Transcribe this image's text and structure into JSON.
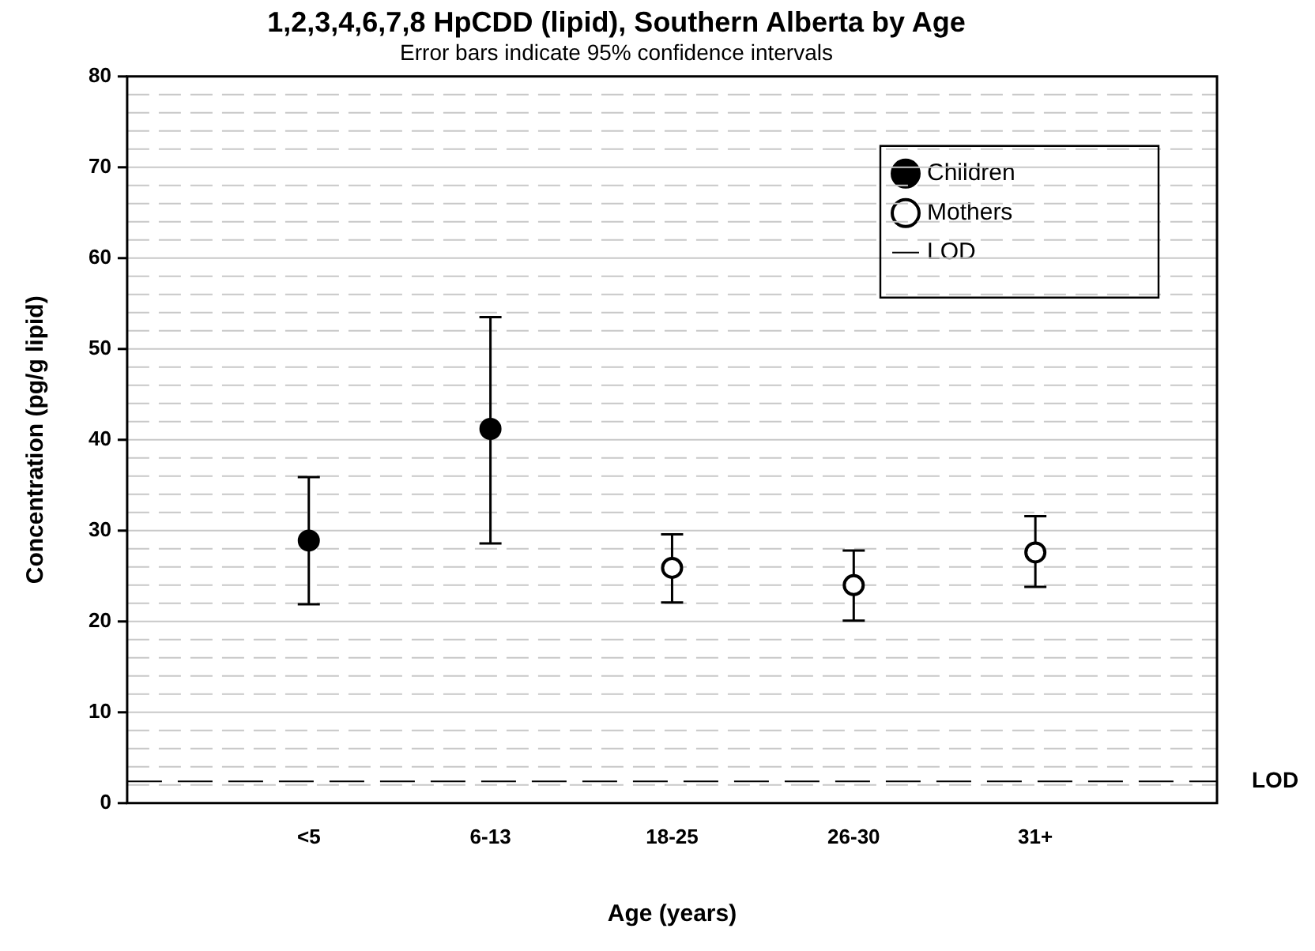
{
  "chart_data": {
    "type": "scatter",
    "title": "1,2,3,4,6,7,8 HpCDD (lipid), Southern Alberta by Age",
    "subtitle": "Error bars indicate 95% confidence intervals",
    "xlabel": "Age (years)",
    "ylabel": "Concentration (pg/g lipid)",
    "categories": [
      "<5",
      "6-13",
      "18-25",
      "26-30",
      "31+"
    ],
    "series": [
      {
        "name": "Children",
        "color": "#000000",
        "values": [
          28.9,
          41.2,
          null,
          null,
          null
        ],
        "errors": [
          [
            21.9,
            35.9
          ],
          [
            28.6,
            53.5
          ],
          null,
          null,
          null
        ]
      },
      {
        "name": "Mothers",
        "color": "#ffffff",
        "values": [
          null,
          null,
          25.9,
          24.0,
          27.6
        ],
        "errors": [
          null,
          null,
          [
            22.1,
            29.6
          ],
          [
            20.1,
            27.8
          ],
          [
            23.8,
            31.6
          ]
        ]
      }
    ],
    "ylim": [
      0,
      80
    ],
    "yticks": [
      0,
      {
        "value": 2,
        "label": null
      },
      {
        "value": 4,
        "label": null
      },
      {
        "value": 6,
        "label": null
      },
      {
        "value": 8,
        "label": null
      },
      10,
      {
        "value": 12,
        "label": null
      },
      {
        "value": 14,
        "label": null
      },
      {
        "value": 16,
        "label": null
      },
      {
        "value": 18,
        "label": null
      },
      20,
      {
        "value": 22,
        "label": null
      },
      {
        "value": 24,
        "label": null
      },
      {
        "value": 26,
        "label": null
      },
      {
        "value": 28,
        "label": null
      },
      30,
      {
        "value": 32,
        "label": null
      },
      {
        "value": 34,
        "label": null
      },
      {
        "value": 36,
        "label": null
      },
      {
        "value": 38,
        "label": null
      },
      40,
      {
        "value": 42,
        "label": null
      },
      {
        "value": 44,
        "label": null
      },
      {
        "value": 46,
        "label": null
      },
      {
        "value": 48,
        "label": null
      },
      50,
      {
        "value": 52,
        "label": null
      },
      {
        "value": 54,
        "label": null
      },
      {
        "value": 56,
        "label": null
      },
      {
        "value": 58,
        "label": null
      },
      60,
      {
        "value": 62,
        "label": null
      },
      {
        "value": 64,
        "label": null
      },
      {
        "value": 66,
        "label": null
      },
      {
        "value": 68,
        "label": null
      },
      70,
      {
        "value": 72,
        "label": null
      },
      {
        "value": 74,
        "label": null
      },
      {
        "value": 76,
        "label": null
      },
      {
        "value": 78,
        "label": null
      },
      80
    ],
    "ref_lines": [
      {
        "axis": "y",
        "value": 2.4,
        "label": "LOD",
        "color": "#000000",
        "line_style": "dashed"
      }
    ],
    "grid": "y",
    "legend": "top right",
    "marker": "circle"
  }
}
